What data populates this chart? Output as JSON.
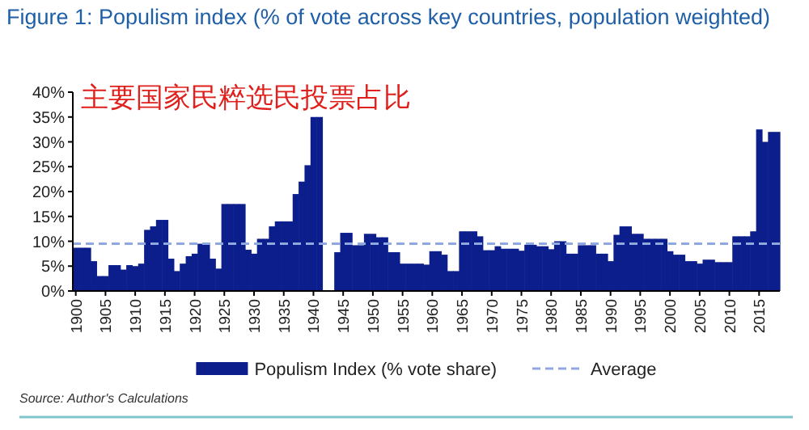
{
  "chart_data": {
    "type": "bar",
    "title": "Figure 1: Populism index (% of vote across key countries, population weighted)",
    "subtitle": "主要国家民粹选民投票占比",
    "x": [
      1900,
      1901,
      1902,
      1903,
      1904,
      1905,
      1906,
      1907,
      1908,
      1909,
      1910,
      1911,
      1912,
      1913,
      1914,
      1915,
      1916,
      1917,
      1918,
      1919,
      1920,
      1921,
      1922,
      1923,
      1924,
      1925,
      1926,
      1927,
      1928,
      1929,
      1930,
      1931,
      1932,
      1933,
      1934,
      1935,
      1936,
      1937,
      1938,
      1939,
      1940,
      1941,
      1942,
      1943,
      1944,
      1945,
      1946,
      1947,
      1948,
      1949,
      1950,
      1951,
      1952,
      1953,
      1954,
      1955,
      1956,
      1957,
      1958,
      1959,
      1960,
      1961,
      1962,
      1963,
      1964,
      1965,
      1966,
      1967,
      1968,
      1969,
      1970,
      1971,
      1972,
      1973,
      1974,
      1975,
      1976,
      1977,
      1978,
      1979,
      1980,
      1981,
      1982,
      1983,
      1984,
      1985,
      1986,
      1987,
      1988,
      1989,
      1990,
      1991,
      1992,
      1993,
      1994,
      1995,
      1996,
      1997,
      1998,
      1999,
      2000,
      2001,
      2002,
      2003,
      2004,
      2005,
      2006,
      2007,
      2008,
      2009,
      2010,
      2011,
      2012,
      2013,
      2014,
      2015,
      2016,
      2017,
      2018
    ],
    "series": [
      {
        "name": "Populism Index (% vote share)",
        "color": "#0b1e8c",
        "values": [
          8.7,
          8.7,
          8.7,
          6,
          3,
          3,
          5.2,
          5.2,
          4.3,
          5.2,
          5,
          5.5,
          12.3,
          13,
          14.3,
          14.3,
          6.5,
          4,
          5.5,
          7,
          7.5,
          9.5,
          9.5,
          6.5,
          4.5,
          17.5,
          17.5,
          17.5,
          17.5,
          8.3,
          7.5,
          10.5,
          10.5,
          13,
          14,
          14,
          14,
          19.5,
          22,
          25.3,
          35,
          35,
          null,
          null,
          7.8,
          11.7,
          11.7,
          9.2,
          9.2,
          11.5,
          11.5,
          10.8,
          10.8,
          7.8,
          7.8,
          5.5,
          5.5,
          5.5,
          5.5,
          5.3,
          8,
          8,
          7.3,
          4,
          4,
          12,
          12,
          12,
          11,
          8.2,
          8.2,
          9,
          8.5,
          8.5,
          8.5,
          8.1,
          9.3,
          9.3,
          9,
          9,
          8.4,
          10,
          10,
          7.5,
          7.5,
          9.2,
          9.2,
          9.2,
          7.5,
          7.5,
          6,
          11.3,
          13,
          13,
          11.5,
          11.5,
          10.5,
          10.5,
          10.5,
          10.5,
          8,
          7.3,
          7.3,
          6,
          6,
          5.5,
          6.3,
          6.3,
          5.8,
          5.8,
          5.8,
          11,
          11,
          11,
          12,
          32.5,
          30,
          32,
          32
        ]
      }
    ],
    "ref_lines": [
      {
        "axis": "y",
        "value": 9.5,
        "label": "Average",
        "color": "#8fa8e0",
        "line_style": "dashed"
      }
    ],
    "xlim": [
      1899.5,
      2018.5
    ],
    "xticks": [
      1900,
      1905,
      1910,
      1915,
      1920,
      1925,
      1930,
      1935,
      1940,
      1945,
      1950,
      1955,
      1960,
      1965,
      1970,
      1975,
      1980,
      1985,
      1990,
      1995,
      2000,
      2005,
      2010,
      2015
    ],
    "ylim": [
      0,
      40
    ],
    "yticks": [
      {
        "value": 0,
        "label": "0%"
      },
      {
        "value": 5,
        "label": "5%"
      },
      {
        "value": 10,
        "label": "10%"
      },
      {
        "value": 15,
        "label": "15%"
      },
      {
        "value": 20,
        "label": "20%"
      },
      {
        "value": 25,
        "label": "25%"
      },
      {
        "value": 30,
        "label": "30%"
      },
      {
        "value": 35,
        "label": "35%"
      },
      {
        "value": 40,
        "label": "40%"
      }
    ],
    "legend": "bottom",
    "grid": false,
    "annotations": [
      "Source: Author's Calculations"
    ]
  }
}
